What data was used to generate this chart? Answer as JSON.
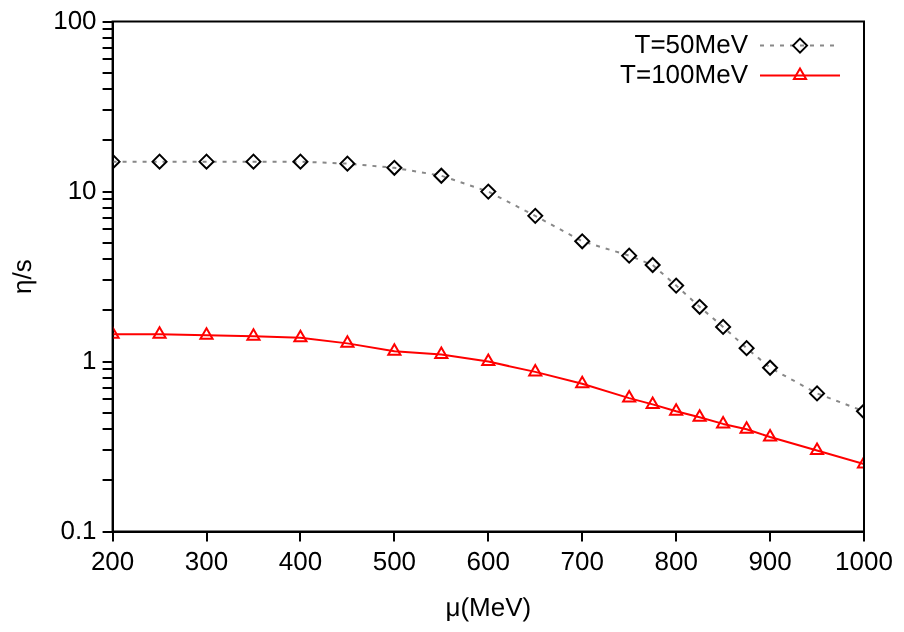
{
  "chart_data": {
    "type": "line",
    "xlabel": "μ(MeV)",
    "ylabel": "η/s",
    "log": "y",
    "grid": false,
    "legend": "top right",
    "xlim": [
      200,
      1000
    ],
    "xticks": [
      200,
      300,
      400,
      500,
      600,
      700,
      800,
      900,
      1000
    ],
    "ylim": [
      0.1,
      100
    ],
    "yticks": [
      0.1,
      {
        "value": 0.2,
        "label": null
      },
      {
        "value": 0.3,
        "label": null
      },
      {
        "value": 0.4,
        "label": null
      },
      {
        "value": 0.5,
        "label": null
      },
      {
        "value": 0.6,
        "label": null
      },
      {
        "value": 0.7,
        "label": null
      },
      {
        "value": 0.8,
        "label": null
      },
      {
        "value": 0.9,
        "label": null
      },
      1,
      {
        "value": 2,
        "label": null
      },
      {
        "value": 3,
        "label": null
      },
      {
        "value": 4,
        "label": null
      },
      {
        "value": 5,
        "label": null
      },
      {
        "value": 6,
        "label": null
      },
      {
        "value": 7,
        "label": null
      },
      {
        "value": 8,
        "label": null
      },
      {
        "value": 9,
        "label": null
      },
      10,
      {
        "value": 20,
        "label": null
      },
      {
        "value": 30,
        "label": null
      },
      {
        "value": 40,
        "label": null
      },
      {
        "value": 50,
        "label": null
      },
      {
        "value": 60,
        "label": null
      },
      {
        "value": 70,
        "label": null
      },
      {
        "value": 80,
        "label": null
      },
      {
        "value": 90,
        "label": null
      },
      100
    ],
    "x": [
      200,
      250,
      300,
      350,
      400,
      450,
      500,
      550,
      600,
      650,
      700,
      750,
      775,
      800,
      825,
      850,
      875,
      900,
      950,
      1000
    ],
    "series": [
      {
        "name": "T=50MeV",
        "color": "#000000",
        "marker": "diamond",
        "line_style": "dotted",
        "values": [
          15,
          15,
          15,
          15,
          15,
          14.6,
          13.8,
          12.4,
          10,
          7.2,
          5.1,
          4.2,
          3.7,
          2.8,
          2.1,
          1.6,
          1.2,
          0.92,
          0.65,
          0.51
        ]
      },
      {
        "name": "T=100MeV",
        "color": "#ff0000",
        "marker": "triangle",
        "line_style": "solid",
        "values": [
          1.45,
          1.45,
          1.43,
          1.41,
          1.38,
          1.28,
          1.15,
          1.1,
          1.0,
          0.87,
          0.74,
          0.61,
          0.56,
          0.51,
          0.47,
          0.43,
          0.4,
          0.36,
          0.3,
          0.25
        ]
      }
    ]
  }
}
